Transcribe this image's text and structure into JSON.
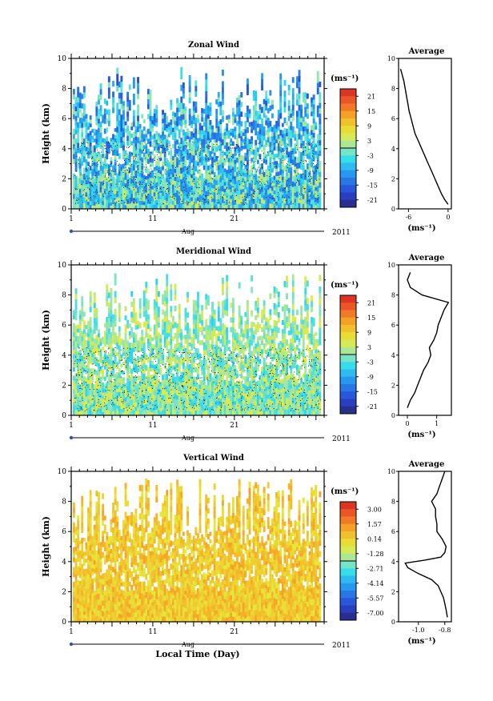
{
  "chart_data": [
    {
      "type": "heatmap",
      "title": "Zonal Wind",
      "ylabel": "Height (km)",
      "ylim": [
        0,
        10
      ],
      "y_ticks": [
        0,
        2,
        4,
        6,
        8,
        10
      ],
      "x_tick_labels": [
        "1",
        "11",
        "21"
      ],
      "x_month": "Aug",
      "x_year": "2011",
      "colorbar_unit": "(ms⁻¹)",
      "colorbar_ticks": [
        "21",
        "15",
        "9",
        "3",
        "-3",
        "-9",
        "-15",
        "-21"
      ],
      "colorbar_range": [
        -24,
        24
      ],
      "field_center": -4,
      "field_spread": 9,
      "profile": {
        "title": "Average",
        "xlabel": "(ms⁻¹)",
        "xlim": [
          -7.5,
          0.5
        ],
        "x_ticks": [
          "-6",
          "0"
        ],
        "x_tick_values": [
          -6,
          0
        ],
        "heights": [
          0.3,
          0.6,
          1.0,
          1.5,
          2.0,
          2.5,
          3.0,
          3.5,
          4.0,
          4.5,
          5.0,
          5.5,
          6.0,
          6.5,
          7.0,
          7.5,
          8.0,
          8.5,
          9.0,
          9.3
        ],
        "values": [
          0.0,
          -0.5,
          -1.0,
          -1.5,
          -2.0,
          -2.5,
          -3.0,
          -3.5,
          -4.0,
          -4.5,
          -5.0,
          -5.3,
          -5.6,
          -5.9,
          -6.1,
          -6.3,
          -6.5,
          -6.7,
          -7.0,
          -7.2
        ]
      }
    },
    {
      "type": "heatmap",
      "title": "Meridional Wind",
      "ylabel": "Height (km)",
      "ylim": [
        0,
        10
      ],
      "y_ticks": [
        0,
        2,
        4,
        6,
        8,
        10
      ],
      "x_tick_labels": [
        "1",
        "11",
        "21"
      ],
      "x_month": "Aug",
      "x_year": "2011",
      "colorbar_unit": "(ms⁻¹)",
      "colorbar_ticks": [
        "21",
        "15",
        "9",
        "3",
        "-3",
        "-9",
        "-15",
        "-21"
      ],
      "colorbar_range": [
        -24,
        24
      ],
      "field_center": 0,
      "field_spread": 6,
      "profile": {
        "title": "Average",
        "xlabel": "(ms⁻¹)",
        "xlim": [
          -0.3,
          1.5
        ],
        "x_ticks": [
          "0",
          "1"
        ],
        "x_tick_values": [
          0,
          1
        ],
        "heights": [
          0.5,
          1.0,
          1.5,
          2.0,
          2.5,
          3.0,
          3.5,
          4.0,
          4.5,
          5.0,
          5.5,
          6.0,
          6.5,
          7.0,
          7.5,
          8.0,
          8.5,
          9.0,
          9.5
        ],
        "values": [
          0.0,
          0.1,
          0.25,
          0.35,
          0.45,
          0.55,
          0.7,
          0.8,
          0.75,
          0.9,
          1.0,
          1.05,
          1.15,
          1.25,
          1.4,
          0.5,
          0.1,
          0.0,
          0.1
        ]
      }
    },
    {
      "type": "heatmap",
      "title": "Vertical Wind",
      "ylabel": "Height (km)",
      "xlabel": "Local Time (Day)",
      "ylim": [
        0,
        10
      ],
      "y_ticks": [
        0,
        2,
        4,
        6,
        8,
        10
      ],
      "x_tick_labels": [
        "1",
        "11",
        "21"
      ],
      "x_month": "Aug",
      "x_year": "2011",
      "colorbar_unit": "(ms⁻¹)",
      "colorbar_ticks": [
        "3.00",
        "1.57",
        "0.14",
        "-1.28",
        "-2.71",
        "-4.14",
        "-5.57",
        "-7.00"
      ],
      "colorbar_range": [
        -7.7,
        3.7
      ],
      "field_center": 0.3,
      "field_spread": 0.9,
      "profile": {
        "title": "Average",
        "xlabel": "(ms⁻¹)",
        "xlim": [
          -1.15,
          -0.75
        ],
        "x_ticks": [
          "-1.0",
          "-0.8"
        ],
        "x_tick_values": [
          -1.0,
          -0.8
        ],
        "heights": [
          0.3,
          0.8,
          1.2,
          1.6,
          2.0,
          2.4,
          2.8,
          3.2,
          3.6,
          3.9,
          4.1,
          4.3,
          4.6,
          5.0,
          5.5,
          6.0,
          6.5,
          7.0,
          7.5,
          8.0,
          8.5,
          9.0,
          9.5,
          10.0
        ],
        "values": [
          -0.78,
          -0.79,
          -0.8,
          -0.81,
          -0.83,
          -0.85,
          -0.9,
          -1.0,
          -1.08,
          -1.1,
          -0.95,
          -0.83,
          -0.8,
          -0.79,
          -0.82,
          -0.86,
          -0.86,
          -0.87,
          -0.87,
          -0.9,
          -0.86,
          -0.84,
          -0.82,
          -0.8
        ]
      }
    }
  ]
}
